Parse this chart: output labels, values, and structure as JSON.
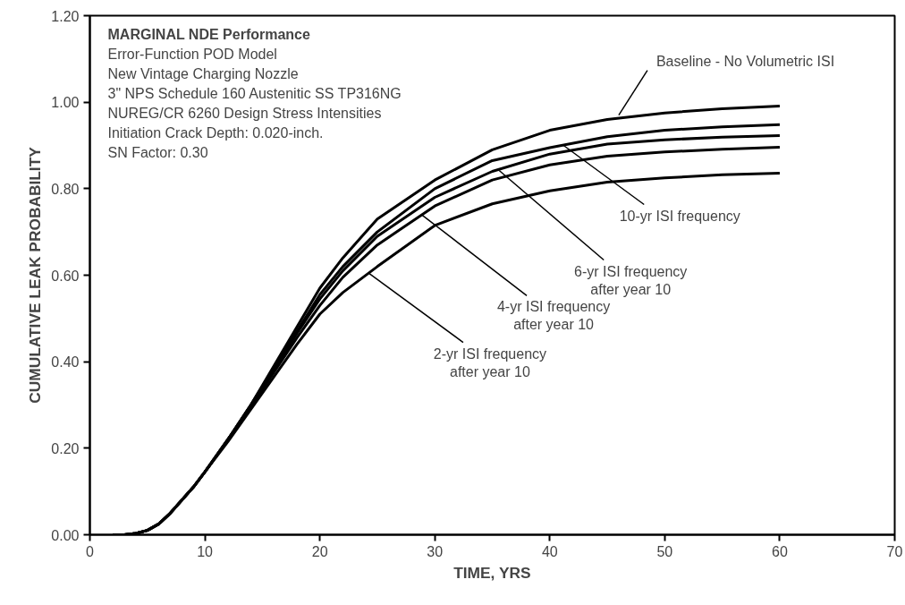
{
  "chart_data": {
    "type": "line",
    "title": "MARGINAL NDE Performance",
    "xlabel": "TIME, YRS",
    "ylabel": "CUMULATIVE LEAK PROBABILITY",
    "xlim": [
      0,
      70
    ],
    "ylim": [
      0,
      1.2
    ],
    "xticks": [
      0,
      10,
      20,
      30,
      40,
      50,
      60,
      70
    ],
    "yticks": [
      {
        "value": 0,
        "label": "0.00"
      },
      {
        "value": 0.2,
        "label": "0.20"
      },
      {
        "value": 0.4,
        "label": "0.40"
      },
      {
        "value": 0.6,
        "label": "0.60"
      },
      {
        "value": 0.8,
        "label": "0.80"
      },
      {
        "value": 1.0,
        "label": "1.00"
      },
      {
        "value": 1.2,
        "label": "1.20"
      }
    ],
    "grid": false,
    "marker": "none",
    "line_style": "solid",
    "x": [
      2,
      3,
      4,
      5,
      6,
      7,
      8,
      9,
      10,
      12,
      14,
      16,
      18,
      20,
      22,
      25,
      30,
      35,
      40,
      45,
      50,
      55,
      60
    ],
    "series": [
      {
        "color": "#000000",
        "values": [
          0,
          0,
          0.003,
          0.01,
          0.025,
          0.05,
          0.08,
          0.11,
          0.145,
          0.22,
          0.3,
          0.39,
          0.48,
          0.57,
          0.64,
          0.73,
          0.82,
          0.89,
          0.935,
          0.96,
          0.975,
          0.985,
          0.991
        ]
      },
      {
        "color": "#000000",
        "values": [
          0,
          0,
          0.003,
          0.01,
          0.025,
          0.05,
          0.08,
          0.11,
          0.145,
          0.22,
          0.3,
          0.385,
          0.47,
          0.555,
          0.62,
          0.7,
          0.8,
          0.865,
          0.895,
          0.92,
          0.935,
          0.943,
          0.948
        ]
      },
      {
        "color": "#000000",
        "values": [
          0,
          0,
          0.003,
          0.01,
          0.025,
          0.05,
          0.08,
          0.11,
          0.145,
          0.22,
          0.3,
          0.38,
          0.465,
          0.545,
          0.61,
          0.69,
          0.78,
          0.84,
          0.88,
          0.903,
          0.913,
          0.919,
          0.923
        ]
      },
      {
        "color": "#000000",
        "values": [
          0,
          0,
          0.003,
          0.01,
          0.025,
          0.05,
          0.08,
          0.11,
          0.145,
          0.22,
          0.295,
          0.375,
          0.455,
          0.53,
          0.595,
          0.67,
          0.76,
          0.82,
          0.855,
          0.875,
          0.885,
          0.891,
          0.896
        ]
      },
      {
        "color": "#000000",
        "values": [
          0,
          0,
          0.003,
          0.01,
          0.025,
          0.05,
          0.08,
          0.11,
          0.145,
          0.215,
          0.29,
          0.365,
          0.44,
          0.51,
          0.56,
          0.62,
          0.715,
          0.765,
          0.795,
          0.815,
          0.825,
          0.832,
          0.836
        ]
      }
    ],
    "annotations": [
      "Error-Function POD Model",
      "New Vintage Charging Nozzle",
      "3\" NPS Schedule 160 Austenitic SS TP316NG",
      "NUREG/CR 6260 Design Stress Intensities",
      "Initiation Crack Depth: 0.020-inch.",
      "SN Factor: 0.30",
      {
        "text": "Baseline - No Volumetric ISI",
        "x": 46,
        "y": 0.97
      },
      {
        "text": "10-yr ISI frequency",
        "x": 41.2,
        "y": 0.9
      },
      {
        "text": "6-yr ISI frequency after year 10",
        "x": 35.6,
        "y": 0.842
      },
      {
        "text": "4-yr ISI frequency after year 10",
        "x": 28.9,
        "y": 0.739
      },
      {
        "text": "2-yr ISI frequency after year 10",
        "x": 24.3,
        "y": 0.604
      }
    ]
  }
}
